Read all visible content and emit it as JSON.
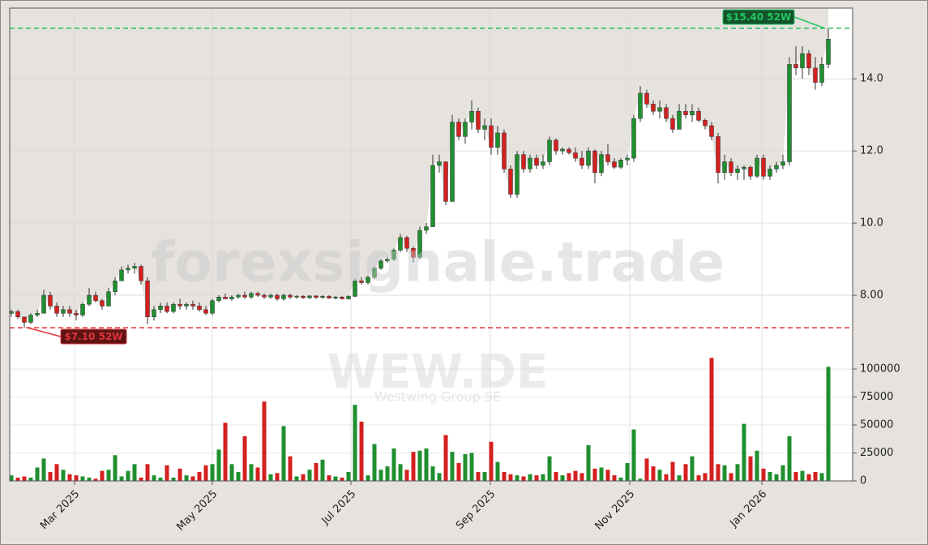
{
  "chart_data": {
    "type": "candlestick",
    "watermark": "forexsignale.trade",
    "ticker": "WEW.DE",
    "company": "Westwing Group SE",
    "x": [
      0,
      2,
      4,
      6,
      8,
      10,
      12,
      14,
      16,
      18,
      20,
      22,
      24,
      26,
      28,
      30,
      32,
      34,
      36,
      38,
      40,
      42,
      44,
      46,
      48,
      50,
      52,
      54,
      56,
      58,
      60,
      62,
      64,
      66,
      68,
      70,
      72,
      74,
      76,
      78,
      80,
      82,
      84,
      86,
      88,
      90,
      92,
      94,
      96,
      98,
      100,
      102,
      104,
      106,
      108,
      110,
      112,
      114,
      116,
      118,
      120,
      122,
      124,
      126,
      128,
      130,
      132,
      134,
      136,
      138,
      140,
      142,
      144,
      146,
      148,
      150,
      152,
      154,
      156,
      158,
      160,
      162,
      164,
      166,
      168,
      170,
      172,
      174,
      176,
      178,
      180,
      182,
      184,
      186,
      188,
      190,
      192,
      194,
      196,
      198,
      200,
      202,
      204,
      206,
      208,
      210,
      212,
      214,
      216,
      218,
      220,
      222,
      224,
      226,
      228,
      230,
      232,
      234,
      236,
      238,
      240,
      242,
      244,
      246,
      248,
      250,
      252
    ],
    "open": [
      7.5,
      7.55,
      7.4,
      7.25,
      7.45,
      7.5,
      8.0,
      7.7,
      7.5,
      7.6,
      7.5,
      7.45,
      7.75,
      8.0,
      7.85,
      7.7,
      8.1,
      8.4,
      8.7,
      8.75,
      8.8,
      8.4,
      7.4,
      7.6,
      7.7,
      7.55,
      7.75,
      7.7,
      7.75,
      7.7,
      7.6,
      7.5,
      7.85,
      7.95,
      7.9,
      7.95,
      8.0,
      7.95,
      8.05,
      8.0,
      7.95,
      8.0,
      7.9,
      8.0,
      7.95,
      7.97,
      7.93,
      7.98,
      7.94,
      7.97,
      7.92,
      7.95,
      7.9,
      7.97,
      8.4,
      8.35,
      8.5,
      8.75,
      8.95,
      9.0,
      9.25,
      9.6,
      9.3,
      9.05,
      9.8,
      9.9,
      11.6,
      11.7,
      10.6,
      12.8,
      12.4,
      12.8,
      13.1,
      12.6,
      12.7,
      12.1,
      12.5,
      11.5,
      10.8,
      11.9,
      11.5,
      11.8,
      11.6,
      11.7,
      12.3,
      12.0,
      12.05,
      11.95,
      11.8,
      11.6,
      12.0,
      11.4,
      11.9,
      11.7,
      11.55,
      11.75,
      11.8,
      12.9,
      13.6,
      13.3,
      13.1,
      13.2,
      12.9,
      12.6,
      13.1,
      13.0,
      13.1,
      12.85,
      12.7,
      12.4,
      11.4,
      11.7,
      11.4,
      11.5,
      11.55,
      11.3,
      11.8,
      11.3,
      11.5,
      11.6,
      11.7,
      14.4,
      14.3,
      14.7,
      14.3,
      13.9,
      14.4
    ],
    "high": [
      7.6,
      7.6,
      7.4,
      7.5,
      7.6,
      8.15,
      8.1,
      7.8,
      7.7,
      7.7,
      7.6,
      7.8,
      8.2,
      8.1,
      7.9,
      8.2,
      8.5,
      8.8,
      8.85,
      8.9,
      8.85,
      8.5,
      7.7,
      7.8,
      7.8,
      7.8,
      7.9,
      7.8,
      7.85,
      7.8,
      7.7,
      7.9,
      8.0,
      8.05,
      8.0,
      8.05,
      8.1,
      8.1,
      8.1,
      8.05,
      8.05,
      8.05,
      8.05,
      8.05,
      8.0,
      8.0,
      8.0,
      8.0,
      8.0,
      8.0,
      7.98,
      7.98,
      8.0,
      8.45,
      8.5,
      8.55,
      8.8,
      9.0,
      9.05,
      9.3,
      9.7,
      9.65,
      9.35,
      9.9,
      10.0,
      11.9,
      11.9,
      11.7,
      13.0,
      12.9,
      12.9,
      13.4,
      13.2,
      12.9,
      12.9,
      12.7,
      12.6,
      11.6,
      12.0,
      12.0,
      11.9,
      11.9,
      11.9,
      12.4,
      12.35,
      12.1,
      12.1,
      12.1,
      12.0,
      12.1,
      12.05,
      12.0,
      12.2,
      11.8,
      11.8,
      11.9,
      13.0,
      13.8,
      13.7,
      13.4,
      13.4,
      13.3,
      13.0,
      13.3,
      13.3,
      13.3,
      13.2,
      12.9,
      12.8,
      12.5,
      11.9,
      11.8,
      11.6,
      11.6,
      11.6,
      11.9,
      11.9,
      11.6,
      11.7,
      11.9,
      14.6,
      14.9,
      14.9,
      14.8,
      14.6,
      14.6,
      15.4
    ],
    "low": [
      7.4,
      7.35,
      7.1,
      7.2,
      7.4,
      7.5,
      7.6,
      7.4,
      7.4,
      7.4,
      7.3,
      7.4,
      7.7,
      7.8,
      7.6,
      7.7,
      8.0,
      8.4,
      8.6,
      8.6,
      8.3,
      7.2,
      7.3,
      7.5,
      7.5,
      7.5,
      7.6,
      7.6,
      7.6,
      7.55,
      7.45,
      7.45,
      7.8,
      7.9,
      7.85,
      7.9,
      7.9,
      7.9,
      7.95,
      7.9,
      7.9,
      7.85,
      7.85,
      7.9,
      7.9,
      7.9,
      7.9,
      7.9,
      7.9,
      7.9,
      7.88,
      7.88,
      7.88,
      7.95,
      8.3,
      8.3,
      8.45,
      8.7,
      8.9,
      8.95,
      9.2,
      9.2,
      8.9,
      9.0,
      9.7,
      9.9,
      11.4,
      10.5,
      10.6,
      12.3,
      12.2,
      12.6,
      12.5,
      12.3,
      11.9,
      11.9,
      11.4,
      10.7,
      10.7,
      11.4,
      11.4,
      11.5,
      11.5,
      11.6,
      11.9,
      11.9,
      11.9,
      11.7,
      11.5,
      11.5,
      11.1,
      11.3,
      11.6,
      11.5,
      11.5,
      11.6,
      11.7,
      12.8,
      13.2,
      13.0,
      12.9,
      12.8,
      12.5,
      12.6,
      12.9,
      12.8,
      12.8,
      12.6,
      12.3,
      11.1,
      11.2,
      11.3,
      11.2,
      11.2,
      11.2,
      11.25,
      11.2,
      11.2,
      11.4,
      11.5,
      11.6,
      14.1,
      14.0,
      14.1,
      13.7,
      13.8,
      14.3
    ],
    "close": [
      7.55,
      7.4,
      7.25,
      7.45,
      7.5,
      8.0,
      7.7,
      7.5,
      7.6,
      7.5,
      7.45,
      7.75,
      8.0,
      7.85,
      7.7,
      8.1,
      8.4,
      8.7,
      8.75,
      8.8,
      8.4,
      7.4,
      7.6,
      7.7,
      7.55,
      7.75,
      7.7,
      7.75,
      7.7,
      7.6,
      7.5,
      7.85,
      7.95,
      7.9,
      7.95,
      8.0,
      7.95,
      8.05,
      8.0,
      7.95,
      8.0,
      7.9,
      8.0,
      7.95,
      7.97,
      7.93,
      7.98,
      7.94,
      7.97,
      7.92,
      7.95,
      7.9,
      7.97,
      8.4,
      8.35,
      8.5,
      8.75,
      8.95,
      9.0,
      9.25,
      9.6,
      9.3,
      9.05,
      9.8,
      9.9,
      11.6,
      11.7,
      10.6,
      12.8,
      12.4,
      12.8,
      13.1,
      12.6,
      12.7,
      12.1,
      12.5,
      11.5,
      10.8,
      11.9,
      11.5,
      11.8,
      11.6,
      11.7,
      12.3,
      12.0,
      12.05,
      11.95,
      11.8,
      11.6,
      12.0,
      11.4,
      11.9,
      11.7,
      11.55,
      11.75,
      11.8,
      12.9,
      13.6,
      13.3,
      13.1,
      13.2,
      12.9,
      12.6,
      13.1,
      13.0,
      13.1,
      12.85,
      12.7,
      12.4,
      11.4,
      11.7,
      11.4,
      11.5,
      11.55,
      11.3,
      11.8,
      11.3,
      11.5,
      11.6,
      11.7,
      14.4,
      14.3,
      14.7,
      14.3,
      13.9,
      14.4,
      15.1
    ],
    "up_color": "#1f8f2f",
    "down_color": "#d42020",
    "xlim": [
      -0.5,
      259.5
    ],
    "xticks": [
      {
        "value": 19.5,
        "label": "Mar 2025"
      },
      {
        "value": 62,
        "label": "May 2025"
      },
      {
        "value": 104.75,
        "label": "Jul 2025"
      },
      {
        "value": 147.75,
        "label": "Sep 2025"
      },
      {
        "value": 190.75,
        "label": "Nov 2025"
      },
      {
        "value": 231.5,
        "label": "Jan 2026"
      }
    ],
    "ylim": [
      6.63,
      15.96
    ],
    "yticks": [
      {
        "value": 8,
        "label": "8.00"
      },
      {
        "value": 10,
        "label": "10.0"
      },
      {
        "value": 12,
        "label": "12.0"
      },
      {
        "value": 14,
        "label": "14.0"
      }
    ],
    "grid": true,
    "volume": {
      "values": [
        5000,
        3000,
        4000,
        3000,
        12000,
        20000,
        8000,
        15000,
        10000,
        6000,
        5000,
        4000,
        3000,
        2000,
        9000,
        10000,
        23000,
        4000,
        9000,
        15000,
        3000,
        15000,
        5000,
        3000,
        14000,
        3000,
        11000,
        5000,
        4000,
        8000,
        14000,
        15000,
        28000,
        52000,
        15000,
        8000,
        40000,
        15000,
        12000,
        71000,
        6000,
        7000,
        49000,
        22000,
        4000,
        6000,
        10000,
        16000,
        19000,
        5000,
        4000,
        3000,
        8000,
        68000,
        53000,
        5000,
        33000,
        10000,
        13000,
        29000,
        15000,
        10000,
        26000,
        27000,
        29000,
        13000,
        7000,
        41000,
        26000,
        16000,
        24000,
        25000,
        8000,
        8000,
        35000,
        17000,
        8000,
        6000,
        5000,
        4000,
        6000,
        5000,
        6000,
        22000,
        8000,
        5000,
        7000,
        9000,
        7000,
        32000,
        11000,
        12000,
        10000,
        5000,
        3000,
        16000,
        46000,
        2000,
        20000,
        13000,
        10000,
        6000,
        17000,
        5000,
        15000,
        22000,
        5000,
        7000,
        110000,
        15000,
        14000,
        7000,
        15000,
        51000,
        22000,
        27000,
        11000,
        8000,
        6000,
        14000,
        40000,
        8000,
        9000,
        6000,
        8000,
        7000,
        102000
      ],
      "ylim": [
        0,
        110900
      ],
      "yticks": [
        0,
        25000,
        50000,
        75000,
        100000
      ]
    },
    "annotations": [
      {
        "label": "$15.40 52W",
        "value": 15.4,
        "color": "#22c55e",
        "kind": "high"
      },
      {
        "label": "$7.10 52W",
        "value": 7.1,
        "color": "#e0343a",
        "kind": "low"
      }
    ]
  }
}
